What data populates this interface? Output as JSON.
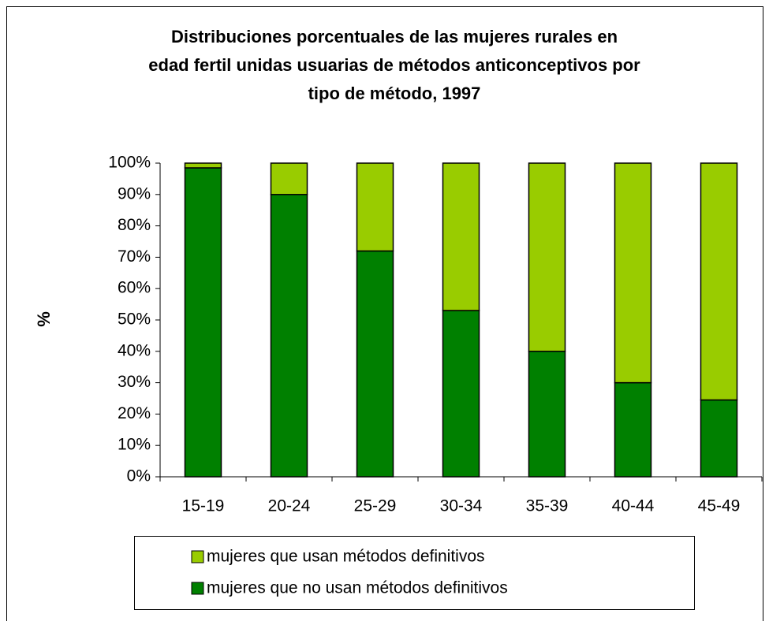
{
  "chart_data": {
    "type": "stacked_bar",
    "title": [
      "Distribuciones porcentuales de las mujeres rurales en",
      "edad fertil unidas usuarias de métodos anticonceptivos por",
      "tipo de método, 1997"
    ],
    "y_label": "%",
    "categories": [
      "15-19",
      "20-24",
      "25-29",
      "30-34",
      "35-39",
      "40-44",
      "45-49"
    ],
    "series": [
      {
        "name": "mujeres que no usan métodos definitivos",
        "color": "#008000",
        "values": [
          98.5,
          90,
          72,
          53,
          40,
          30,
          24.5
        ]
      },
      {
        "name": "mujeres que usan métodos definitivos",
        "color": "#99cc00",
        "values": [
          1.5,
          10,
          28,
          47,
          60,
          70,
          75.5
        ]
      }
    ],
    "ylim": [
      0,
      100
    ],
    "yticks": [
      {
        "value": 0,
        "label": "0%"
      },
      {
        "value": 10,
        "label": "10%"
      },
      {
        "value": 20,
        "label": "20%"
      },
      {
        "value": 30,
        "label": "30%"
      },
      {
        "value": 40,
        "label": "40%"
      },
      {
        "value": 50,
        "label": "50%"
      },
      {
        "value": 60,
        "label": "60%"
      },
      {
        "value": 70,
        "label": "70%"
      },
      {
        "value": 80,
        "label": "80%"
      },
      {
        "value": 90,
        "label": "90%"
      },
      {
        "value": 100,
        "label": "100%"
      }
    ],
    "legend": "bottom"
  }
}
